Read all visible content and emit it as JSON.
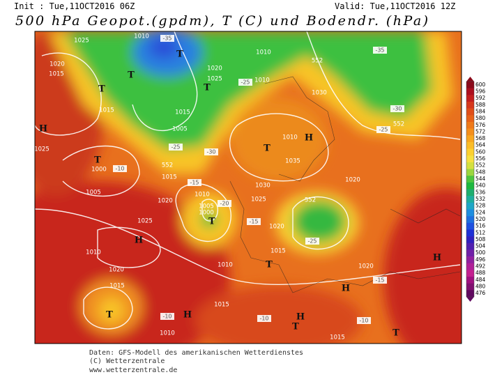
{
  "header": {
    "init": "Init : Tue,11OCT2016 06Z",
    "valid": "Valid: Tue,11OCT2016 12Z",
    "title": "500 hPa Geopot.(gpdm), T (C) und Bodendr. (hPa)"
  },
  "map": {
    "labels": [
      "1010",
      "1025",
      "1020",
      "1015",
      "T",
      "T",
      "T",
      "-35",
      "1020",
      "1025",
      "T",
      "1010",
      "1010",
      "-25",
      "552",
      "-35",
      "1030",
      "1015",
      "1015",
      "1005",
      "-25",
      "-30",
      "T",
      "1000",
      "1005",
      "-10",
      "552",
      "1025",
      "H",
      "-15",
      "1010",
      "1015",
      "1020",
      "1035",
      "T",
      "H",
      "1030",
      "1025",
      "-15",
      "1010",
      "-20",
      "1005",
      "1000",
      "T",
      "1020",
      "H",
      "552",
      "1020",
      "-25",
      "1015",
      "1020",
      "1010",
      "T",
      "1010",
      "1015",
      "1025",
      "H",
      "1020",
      "1015",
      "T",
      "-10",
      "-10",
      "H",
      "H",
      "T",
      "1015",
      "-15",
      "T",
      "-25",
      "-30",
      "552",
      "1010",
      "-10",
      "H"
    ]
  },
  "legend": {
    "values": [
      600,
      596,
      592,
      588,
      584,
      580,
      576,
      572,
      568,
      564,
      560,
      556,
      552,
      548,
      544,
      540,
      536,
      532,
      528,
      524,
      520,
      516,
      512,
      508,
      504,
      500,
      496,
      492,
      488,
      484,
      480,
      476
    ],
    "colors": [
      "#8b0a1a",
      "#ad0f1e",
      "#c41f1e",
      "#d6381c",
      "#e04e18",
      "#e86218",
      "#ef7a1a",
      "#f48f1c",
      "#f8a720",
      "#fbbd28",
      "#fcd030",
      "#f6e040",
      "#d4e040",
      "#9cd640",
      "#4ec640",
      "#1eb840",
      "#1eae6e",
      "#1eae9e",
      "#1ea6c6",
      "#1e8ee0",
      "#1e70e0",
      "#1e50e0",
      "#1e30d6",
      "#3020c0",
      "#5020b0",
      "#7020a8",
      "#9020a0",
      "#b02098",
      "#c42090",
      "#a01080",
      "#801070",
      "#600860"
    ]
  },
  "footer": {
    "lines": [
      "Daten: GFS-Modell des amerikanischen Wetterdienstes",
      "(C) Wetterzentrale",
      "www.wetterzentrale.de"
    ]
  }
}
